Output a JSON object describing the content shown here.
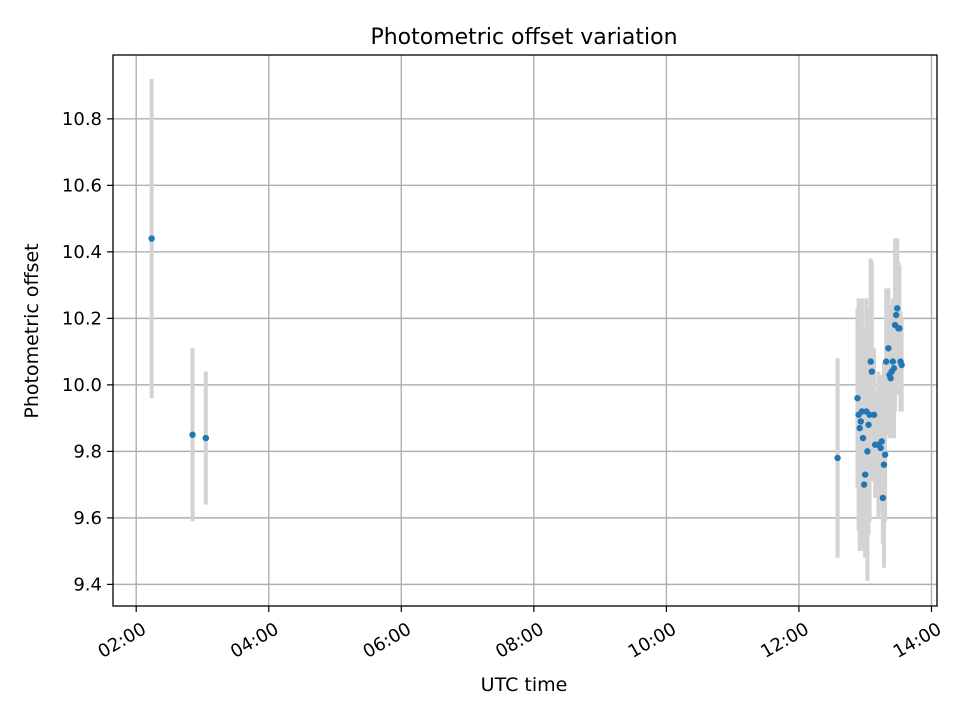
{
  "chart_data": {
    "type": "scatter",
    "title": "Photometric offset variation",
    "xlabel": "UTC time",
    "ylabel": "Photometric offset",
    "xlim": [
      "01:39",
      "14:05"
    ],
    "ylim": [
      9.335,
      10.992
    ],
    "x_ticks": [
      "02:00",
      "04:00",
      "06:00",
      "08:00",
      "10:00",
      "12:00",
      "14:00"
    ],
    "y_ticks": [
      "9.4",
      "9.6",
      "9.8",
      "10.0",
      "10.2",
      "10.4",
      "10.6",
      "10.8"
    ],
    "grid": true,
    "error_bar_color": "#d3d3d3",
    "marker_color": "#1f77b4",
    "series": [
      {
        "points": [
          {
            "x": "02:14",
            "y": 10.44,
            "err": 0.48
          },
          {
            "x": "02:51",
            "y": 9.85,
            "err": 0.26
          },
          {
            "x": "03:03",
            "y": 9.84,
            "err": 0.2
          },
          {
            "x": "12:35",
            "y": 9.78,
            "err": 0.3
          },
          {
            "x": "12:53",
            "y": 9.96,
            "err": 0.27
          },
          {
            "x": "12:54",
            "y": 9.91,
            "err": 0.35
          },
          {
            "x": "12:55",
            "y": 9.87,
            "err": 0.37
          },
          {
            "x": "12:56",
            "y": 9.89,
            "err": 0.33
          },
          {
            "x": "12:57",
            "y": 9.92,
            "err": 0.34
          },
          {
            "x": "12:58",
            "y": 9.84,
            "err": 0.33
          },
          {
            "x": "12:59",
            "y": 9.7,
            "err": 0.2
          },
          {
            "x": "13:00",
            "y": 9.73,
            "err": 0.25
          },
          {
            "x": "13:01",
            "y": 9.92,
            "err": 0.34
          },
          {
            "x": "13:02",
            "y": 9.8,
            "err": 0.39
          },
          {
            "x": "13:03",
            "y": 9.88,
            "err": 0.33
          },
          {
            "x": "13:04",
            "y": 9.91,
            "err": 0.32
          },
          {
            "x": "13:05",
            "y": 10.07,
            "err": 0.31
          },
          {
            "x": "13:06",
            "y": 10.04,
            "err": 0.33
          },
          {
            "x": "13:08",
            "y": 9.91,
            "err": 0.2
          },
          {
            "x": "13:09",
            "y": 9.82,
            "err": 0.16
          },
          {
            "x": "13:12",
            "y": 9.82,
            "err": 0.22
          },
          {
            "x": "13:14",
            "y": 9.81,
            "err": 0.19
          },
          {
            "x": "13:15",
            "y": 9.83,
            "err": 0.2
          },
          {
            "x": "13:16",
            "y": 9.66,
            "err": 0.14
          },
          {
            "x": "13:17",
            "y": 9.76,
            "err": 0.31
          },
          {
            "x": "13:18",
            "y": 9.79,
            "err": 0.2
          },
          {
            "x": "13:19",
            "y": 10.07,
            "err": 0.22
          },
          {
            "x": "13:21",
            "y": 10.11,
            "err": 0.18
          },
          {
            "x": "13:22",
            "y": 10.03,
            "err": 0.19
          },
          {
            "x": "13:23",
            "y": 10.02,
            "err": 0.18
          },
          {
            "x": "13:24",
            "y": 10.04,
            "err": 0.2
          },
          {
            "x": "13:25",
            "y": 10.07,
            "err": 0.19
          },
          {
            "x": "13:26",
            "y": 10.05,
            "err": 0.21
          },
          {
            "x": "13:27",
            "y": 10.18,
            "err": 0.26
          },
          {
            "x": "13:28",
            "y": 10.21,
            "err": 0.23
          },
          {
            "x": "13:29",
            "y": 10.23,
            "err": 0.21
          },
          {
            "x": "13:30",
            "y": 10.17,
            "err": 0.2
          },
          {
            "x": "13:31",
            "y": 10.17,
            "err": 0.19
          },
          {
            "x": "13:32",
            "y": 10.07,
            "err": 0.15
          },
          {
            "x": "13:33",
            "y": 10.06,
            "err": 0.14
          }
        ]
      }
    ]
  }
}
